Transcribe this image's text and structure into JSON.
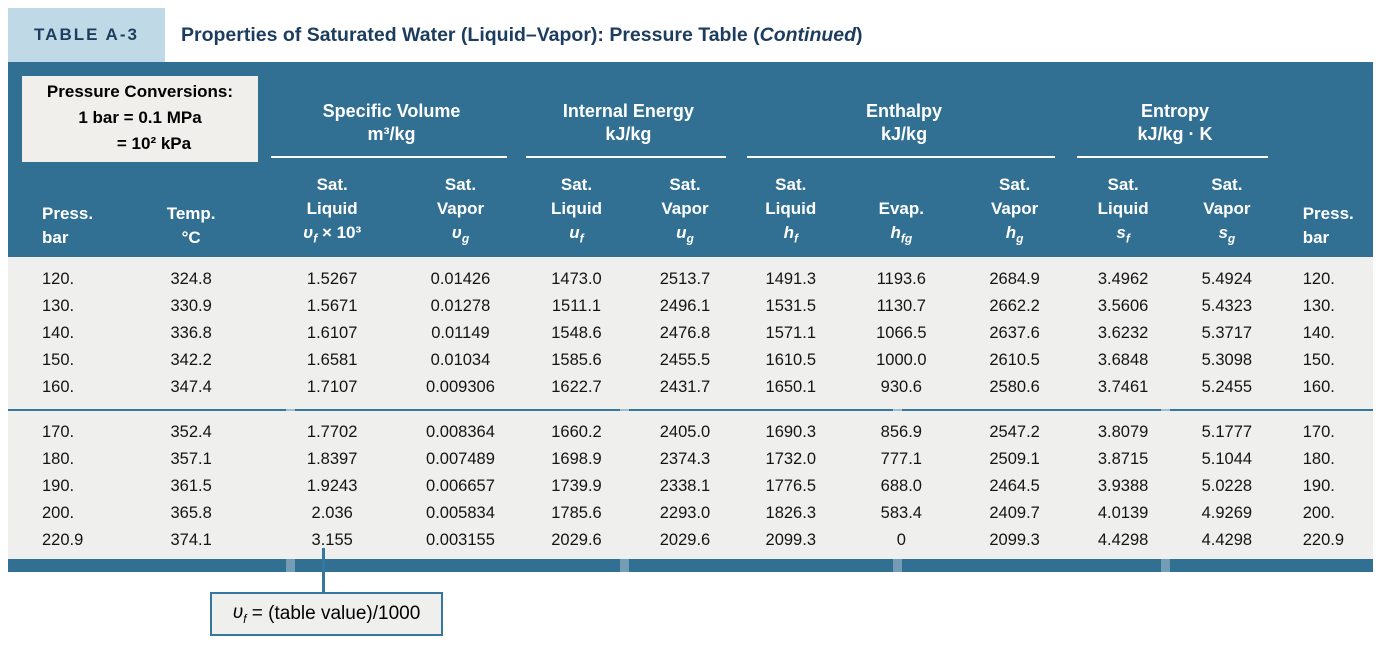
{
  "colors": {
    "teal": "#316F93",
    "navy": "#1C3D5E",
    "lightblue": "#BFD9E6",
    "bodygray": "#EFEFED",
    "lineblue": "#3577A0",
    "ink": "#141414"
  },
  "header": {
    "table_label": "TABLE A-3",
    "title_prefix": "Properties of Saturated Water (Liquid–Vapor): Pressure Table (",
    "title_italic": "Continued",
    "title_suffix": ")"
  },
  "pressure_conversions": {
    "line1": "Pressure Conversions:",
    "line2": "1 bar = 0.1 MPa",
    "line3": "= 10² kPa"
  },
  "groups": [
    {
      "label": "Specific Volume",
      "unit": "m³/kg",
      "colspan": 2
    },
    {
      "label": "Internal Energy",
      "unit": "kJ/kg",
      "colspan": 2
    },
    {
      "label": "Enthalpy",
      "unit": "kJ/kg",
      "colspan": 3
    },
    {
      "label": "Entropy",
      "unit": "kJ/kg · K",
      "colspan": 2
    }
  ],
  "columns": [
    {
      "name": "press-bar-left",
      "lines": [
        "Press.",
        "bar"
      ]
    },
    {
      "name": "temp-c",
      "lines": [
        "Temp.",
        "°C"
      ]
    },
    {
      "name": "sat-liquid-specific-volume",
      "lines": [
        "Sat.",
        "Liquid"
      ],
      "sym": {
        "base": "υ",
        "sub": "f",
        "suffix": " × 10³"
      }
    },
    {
      "name": "sat-vapor-specific-volume",
      "lines": [
        "Sat.",
        "Vapor"
      ],
      "sym": {
        "base": "υ",
        "sub": "g",
        "suffix": ""
      }
    },
    {
      "name": "sat-liquid-internal-energy",
      "lines": [
        "Sat.",
        "Liquid"
      ],
      "sym": {
        "base": "u",
        "sub": "f",
        "suffix": ""
      }
    },
    {
      "name": "sat-vapor-internal-energy",
      "lines": [
        "Sat.",
        "Vapor"
      ],
      "sym": {
        "base": "u",
        "sub": "g",
        "suffix": ""
      }
    },
    {
      "name": "sat-liquid-enthalpy",
      "lines": [
        "Sat.",
        "Liquid"
      ],
      "sym": {
        "base": "h",
        "sub": "f",
        "suffix": ""
      }
    },
    {
      "name": "evap-enthalpy",
      "lines": [
        "Evap."
      ],
      "sym": {
        "base": "h",
        "sub": "fg",
        "suffix": ""
      }
    },
    {
      "name": "sat-vapor-enthalpy",
      "lines": [
        "Sat.",
        "Vapor"
      ],
      "sym": {
        "base": "h",
        "sub": "g",
        "suffix": ""
      }
    },
    {
      "name": "sat-liquid-entropy",
      "lines": [
        "Sat.",
        "Liquid"
      ],
      "sym": {
        "base": "s",
        "sub": "f",
        "suffix": ""
      }
    },
    {
      "name": "sat-vapor-entropy",
      "lines": [
        "Sat.",
        "Vapor"
      ],
      "sym": {
        "base": "s",
        "sub": "g",
        "suffix": ""
      }
    },
    {
      "name": "press-bar-right",
      "lines": [
        "Press.",
        "bar"
      ]
    }
  ],
  "blocks": [
    [
      [
        "120.",
        "324.8",
        "1.5267",
        "0.01426",
        "1473.0",
        "2513.7",
        "1491.3",
        "1193.6",
        "2684.9",
        "3.4962",
        "5.4924",
        "120."
      ],
      [
        "130.",
        "330.9",
        "1.5671",
        "0.01278",
        "1511.1",
        "2496.1",
        "1531.5",
        "1130.7",
        "2662.2",
        "3.5606",
        "5.4323",
        "130."
      ],
      [
        "140.",
        "336.8",
        "1.6107",
        "0.01149",
        "1548.6",
        "2476.8",
        "1571.1",
        "1066.5",
        "2637.6",
        "3.6232",
        "5.3717",
        "140."
      ],
      [
        "150.",
        "342.2",
        "1.6581",
        "0.01034",
        "1585.6",
        "2455.5",
        "1610.5",
        "1000.0",
        "2610.5",
        "3.6848",
        "5.3098",
        "150."
      ],
      [
        "160.",
        "347.4",
        "1.7107",
        "0.009306",
        "1622.7",
        "2431.7",
        "1650.1",
        "930.6",
        "2580.6",
        "3.7461",
        "5.2455",
        "160."
      ]
    ],
    [
      [
        "170.",
        "352.4",
        "1.7702",
        "0.008364",
        "1660.2",
        "2405.0",
        "1690.3",
        "856.9",
        "2547.2",
        "3.8079",
        "5.1777",
        "170."
      ],
      [
        "180.",
        "357.1",
        "1.8397",
        "0.007489",
        "1698.9",
        "2374.3",
        "1732.0",
        "777.1",
        "2509.1",
        "3.8715",
        "5.1044",
        "180."
      ],
      [
        "190.",
        "361.5",
        "1.9243",
        "0.006657",
        "1739.9",
        "2338.1",
        "1776.5",
        "688.0",
        "2464.5",
        "3.9388",
        "5.0228",
        "190."
      ],
      [
        "200.",
        "365.8",
        "2.036",
        "0.005834",
        "1785.6",
        "2293.0",
        "1826.3",
        "583.4",
        "2409.7",
        "4.0139",
        "4.9269",
        "200."
      ],
      [
        "220.9",
        "374.1",
        "3.155",
        "0.003155",
        "2029.6",
        "2029.6",
        "2099.3",
        "0",
        "2099.3",
        "4.4298",
        "4.4298",
        "220.9"
      ]
    ]
  ],
  "footnote": {
    "sym_base": "υ",
    "sym_sub": "f",
    "text": " = (table value)/1000"
  }
}
